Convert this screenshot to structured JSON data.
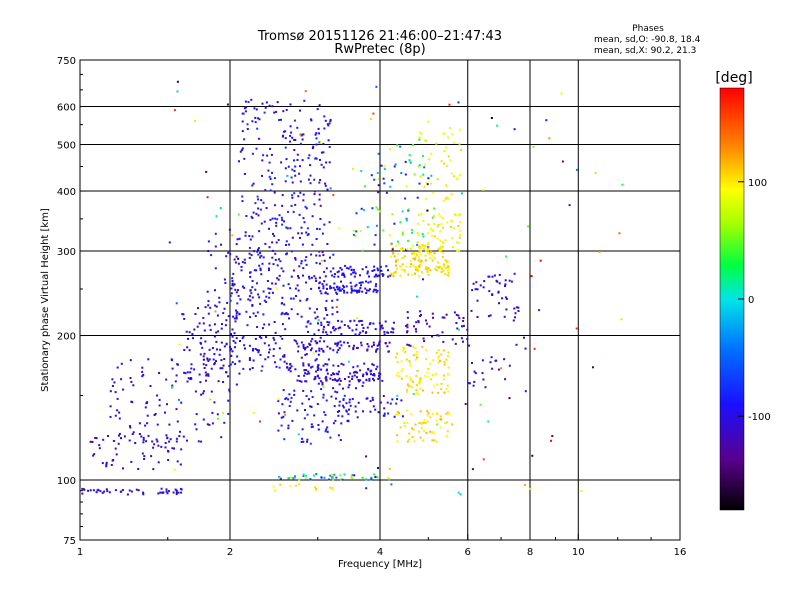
{
  "chart_data": {
    "type": "scatter",
    "title": "Tromsø 20151126 21:46:00–21:47:43",
    "subtitle": "RwPretec (8p)",
    "xlabel": "Frequency [MHz]",
    "ylabel": "Stationary phase Virtual Height [km]",
    "x_scale": "log",
    "y_scale": "log",
    "xlim": [
      1,
      16
    ],
    "ylim": [
      75,
      750
    ],
    "x_ticks": [
      "1",
      "2",
      "4",
      "6",
      "8",
      "10",
      "16"
    ],
    "x_tick_values": [
      1,
      2,
      4,
      6,
      8,
      10,
      16
    ],
    "y_ticks": [
      "75",
      "100",
      "200",
      "300",
      "400",
      "500",
      "600",
      "750"
    ],
    "y_tick_values": [
      75,
      100,
      200,
      300,
      400,
      500,
      600,
      750
    ],
    "grid": true,
    "legend": {
      "heading": "Phases",
      "line1": "mean, sd,O: -90.8, 18.4",
      "line2": "mean, sd,X:  90.2, 21.3"
    },
    "colorbar": {
      "label": "[deg]",
      "ticks": [
        "100",
        "0",
        "-100"
      ],
      "tick_values": [
        100,
        0,
        -100
      ],
      "range": [
        -180,
        180
      ]
    },
    "clusters": [
      {
        "x": [
          1.0,
          1.6
        ],
        "y": [
          93,
          96
        ],
        "phase": [
          -120,
          -90
        ],
        "count": 45
      },
      {
        "x": [
          1.05,
          1.6
        ],
        "y": [
          105,
          125
        ],
        "phase": [
          -125,
          -95
        ],
        "count": 60
      },
      {
        "x": [
          1.15,
          2.0
        ],
        "y": [
          120,
          180
        ],
        "phase": [
          -125,
          -90
        ],
        "count": 120
      },
      {
        "x": [
          1.6,
          2.1
        ],
        "y": [
          160,
          230
        ],
        "phase": [
          -120,
          -85
        ],
        "count": 90
      },
      {
        "x": [
          1.8,
          2.3
        ],
        "y": [
          220,
          330
        ],
        "phase": [
          -115,
          -80
        ],
        "count": 50
      },
      {
        "x": [
          2.0,
          3.3
        ],
        "y": [
          170,
          300
        ],
        "phase": [
          -115,
          -80
        ],
        "count": 280
      },
      {
        "x": [
          2.1,
          3.2
        ],
        "y": [
          300,
          620
        ],
        "phase": [
          -120,
          -70
        ],
        "count": 240
      },
      {
        "x": [
          2.5,
          4.2
        ],
        "y": [
          100,
          103
        ],
        "phase": [
          -110,
          110
        ],
        "count": 50
      },
      {
        "x": [
          2.5,
          3.5
        ],
        "y": [
          120,
          155
        ],
        "phase": [
          -110,
          -70
        ],
        "count": 80
      },
      {
        "x": [
          2.6,
          4.0
        ],
        "y": [
          155,
          175
        ],
        "phase": [
          -120,
          -85
        ],
        "count": 70
      },
      {
        "x": [
          2.8,
          4.1
        ],
        "y": [
          160,
          170
        ],
        "phase": [
          -125,
          -90
        ],
        "count": 50
      },
      {
        "x": [
          2.8,
          4.2
        ],
        "y": [
          185,
          195
        ],
        "phase": [
          -125,
          -95
        ],
        "count": 60
      },
      {
        "x": [
          3.0,
          4.3
        ],
        "y": [
          200,
          215
        ],
        "phase": [
          -120,
          -90
        ],
        "count": 60
      },
      {
        "x": [
          3.0,
          4.0
        ],
        "y": [
          245,
          260
        ],
        "phase": [
          -115,
          -80
        ],
        "count": 70
      },
      {
        "x": [
          3.2,
          4.2
        ],
        "y": [
          265,
          280
        ],
        "phase": [
          -110,
          -85
        ],
        "count": 50
      },
      {
        "x": [
          3.3,
          4.5
        ],
        "y": [
          135,
          150
        ],
        "phase": [
          -115,
          -80
        ],
        "count": 40
      },
      {
        "x": [
          3.5,
          5.2
        ],
        "y": [
          300,
          500
        ],
        "phase": [
          -110,
          100
        ],
        "count": 90
      },
      {
        "x": [
          4.2,
          5.5
        ],
        "y": [
          265,
          310
        ],
        "phase": [
          85,
          120
        ],
        "count": 140
      },
      {
        "x": [
          4.7,
          5.8
        ],
        "y": [
          300,
          360
        ],
        "phase": [
          80,
          110
        ],
        "count": 60
      },
      {
        "x": [
          4.3,
          5.5
        ],
        "y": [
          150,
          190
        ],
        "phase": [
          85,
          115
        ],
        "count": 90
      },
      {
        "x": [
          4.3,
          5.6
        ],
        "y": [
          120,
          140
        ],
        "phase": [
          85,
          120
        ],
        "count": 60
      },
      {
        "x": [
          4.8,
          5.8
        ],
        "y": [
          380,
          560
        ],
        "phase": [
          80,
          110
        ],
        "count": 40
      },
      {
        "x": [
          4.5,
          6.0
        ],
        "y": [
          190,
          225
        ],
        "phase": [
          -130,
          -100
        ],
        "count": 50
      },
      {
        "x": [
          6.1,
          7.6
        ],
        "y": [
          215,
          270
        ],
        "phase": [
          -125,
          -90
        ],
        "count": 45
      },
      {
        "x": [
          6.0,
          8.0
        ],
        "y": [
          150,
          200
        ],
        "phase": [
          -120,
          -90
        ],
        "count": 25
      },
      {
        "x": [
          2.4,
          3.6
        ],
        "y": [
          95,
          98
        ],
        "phase": [
          80,
          110
        ],
        "count": 12
      },
      {
        "x": [
          1.5,
          12.5
        ],
        "y": [
          90,
          680
        ],
        "phase": [
          -180,
          180
        ],
        "count": 120
      }
    ]
  }
}
